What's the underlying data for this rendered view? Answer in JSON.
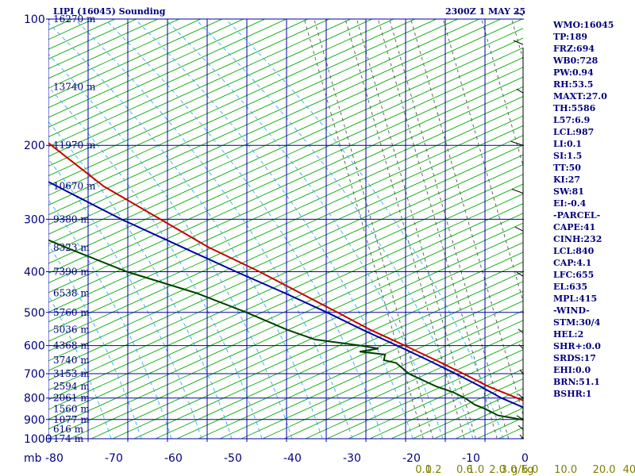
{
  "header": {
    "station_title": "LIPI (16045) Sounding",
    "valid_time": "2300Z  1 MAY 25"
  },
  "indices": [
    "WMO:16045",
    "TP:189",
    "FRZ:694",
    "WB0:728",
    "PW:0.94",
    "RH:53.5",
    "MAXT:27.0",
    "TH:5586",
    "L57:6.9",
    "LCL:987",
    "LI:0.1",
    "SI:1.5",
    "TT:50",
    "KI:27",
    "SW:81",
    "EI:-0.4",
    "-PARCEL-",
    "CAPE:41",
    "CINH:232",
    "LCL:840",
    "CAP:4.1",
    "LFC:655",
    "EL:635",
    "MPL:415",
    "-WIND-",
    "STM:30/4",
    "HEL:2",
    "SHR+:0.0",
    "SRDS:17",
    "EHI:0.0",
    "BRN:51.1",
    "BSHR:1"
  ],
  "chart_data": {
    "type": "line",
    "title": "LIPI (16045) Sounding",
    "subtitle": "2300Z  1 MAY 25",
    "y_axis_unit": "mb",
    "y_scale": "log",
    "ylim": [
      1000,
      100
    ],
    "y_ticks": [
      100,
      200,
      300,
      400,
      500,
      600,
      700,
      800,
      900,
      1000
    ],
    "x_skew_note": "skewed temperature axis",
    "xlim": [
      -80,
      0
    ],
    "x_ticks": [
      -80,
      -70,
      -60,
      -50,
      -40,
      -30,
      -20,
      -10,
      0
    ],
    "x_tick_labels": [
      "-80",
      "-70",
      "-60",
      "-50",
      "-40",
      "-30",
      "-20",
      "-10",
      "0"
    ],
    "mixing_ratio_labels": [
      {
        "label": "0.1",
        "t": -19.5
      },
      {
        "label": "0.2",
        "t": -17.6
      },
      {
        "label": "0.6",
        "t": -11.6
      },
      {
        "label": "1.0",
        "t": -9.4
      },
      {
        "label": "2.0",
        "t": -5.3
      },
      {
        "label": "3.0",
        "t": -3.1
      },
      {
        "label": "5.0",
        "t": 1.0
      },
      {
        "label": "10.0",
        "t": 7.2
      },
      {
        "label": "20.0",
        "t": 14.6
      },
      {
        "label": "40",
        "t": 20.4
      }
    ],
    "mixing_ratio_unit": "g/kg",
    "grid": true,
    "height_labels": [
      {
        "p": 100,
        "text": "16270 m"
      },
      {
        "p": 145,
        "text": "13740 m"
      },
      {
        "p": 200,
        "text": "11970 m"
      },
      {
        "p": 250,
        "text": "10670 m"
      },
      {
        "p": 300,
        "text": "9380 m"
      },
      {
        "p": 350,
        "text": "8323 m"
      },
      {
        "p": 400,
        "text": "7390 m"
      },
      {
        "p": 450,
        "text": "6538 m"
      },
      {
        "p": 500,
        "text": "5760 m"
      },
      {
        "p": 550,
        "text": "5036 m"
      },
      {
        "p": 600,
        "text": "4368 m"
      },
      {
        "p": 650,
        "text": "3740 m"
      },
      {
        "p": 700,
        "text": "3153 m"
      },
      {
        "p": 750,
        "text": "2594 m"
      },
      {
        "p": 800,
        "text": "2061 m"
      },
      {
        "p": 850,
        "text": "1560 m"
      },
      {
        "p": 900,
        "text": "1077 m"
      },
      {
        "p": 950,
        "text": "616 m"
      },
      {
        "p": 1000,
        "text": "174 m"
      }
    ],
    "series": [
      {
        "key": "temperature",
        "color": "#cc0000",
        "points": [
          [
            1020,
            19.5
          ],
          [
            1010,
            20.5
          ],
          [
            1000,
            21.5
          ],
          [
            975,
            19.5
          ],
          [
            950,
            16.5
          ],
          [
            925,
            14.0
          ],
          [
            900,
            11.5
          ],
          [
            850,
            8.0
          ],
          [
            800,
            4.0
          ],
          [
            750,
            0.0
          ],
          [
            700,
            -3.0
          ],
          [
            650,
            -6.5
          ],
          [
            600,
            -10.5
          ],
          [
            550,
            -15.0
          ],
          [
            500,
            -19.0
          ],
          [
            450,
            -23.5
          ],
          [
            400,
            -28.5
          ],
          [
            350,
            -35.0
          ],
          [
            300,
            -40.5
          ],
          [
            250,
            -47.0
          ],
          [
            200,
            -51.5
          ],
          [
            175,
            -54.0
          ],
          [
            150,
            -59.5
          ],
          [
            145,
            -59.8
          ],
          [
            120,
            -60.2
          ],
          [
            110,
            -60.8
          ],
          [
            100,
            -61.5
          ]
        ]
      },
      {
        "key": "dewpoint",
        "color": "#004000",
        "points": [
          [
            1020,
            12.0
          ],
          [
            1015,
            10.0
          ],
          [
            1005,
            7.0
          ],
          [
            1000,
            7.5
          ],
          [
            975,
            8.0
          ],
          [
            950,
            7.0
          ],
          [
            930,
            6.5
          ],
          [
            900,
            2.0
          ],
          [
            880,
            -2.0
          ],
          [
            850,
            -3.5
          ],
          [
            830,
            -5.0
          ],
          [
            800,
            -6.0
          ],
          [
            775,
            -7.5
          ],
          [
            750,
            -10.0
          ],
          [
            700,
            -13.5
          ],
          [
            660,
            -14.5
          ],
          [
            650,
            -16.5
          ],
          [
            630,
            -15.5
          ],
          [
            620,
            -20.0
          ],
          [
            610,
            -16.0
          ],
          [
            600,
            -19.0
          ],
          [
            580,
            -27.0
          ],
          [
            550,
            -31.0
          ],
          [
            500,
            -36.5
          ],
          [
            450,
            -43.5
          ],
          [
            400,
            -54.0
          ],
          [
            350,
            -62.5
          ],
          [
            300,
            -71.5
          ],
          [
            275,
            -74.5
          ],
          [
            250,
            -74.5
          ],
          [
            240,
            -71.5
          ],
          [
            230,
            -73.0
          ],
          [
            220,
            -75.0
          ],
          [
            180,
            -80.0
          ],
          [
            160,
            -81.5
          ],
          [
            150,
            -84.5
          ],
          [
            145,
            -90.5
          ]
        ]
      },
      {
        "key": "parcel",
        "color": "#0000aa",
        "points": [
          [
            1000,
            23.5
          ],
          [
            975,
            18.0
          ],
          [
            950,
            13.5
          ],
          [
            925,
            10.5
          ],
          [
            900,
            8.0
          ],
          [
            850,
            4.5
          ],
          [
            800,
            1.0
          ],
          [
            750,
            -1.5
          ],
          [
            700,
            -4.5
          ],
          [
            650,
            -8.0
          ],
          [
            600,
            -12.0
          ],
          [
            550,
            -16.5
          ],
          [
            500,
            -21.0
          ],
          [
            450,
            -26.5
          ],
          [
            400,
            -33.0
          ],
          [
            350,
            -40.0
          ],
          [
            300,
            -48.0
          ],
          [
            250,
            -56.0
          ],
          [
            200,
            -66.0
          ],
          [
            175,
            -72.0
          ],
          [
            150,
            -77.5
          ],
          [
            140,
            -80.0
          ]
        ]
      }
    ],
    "wind_profile": "wind barbs on right edge"
  }
}
